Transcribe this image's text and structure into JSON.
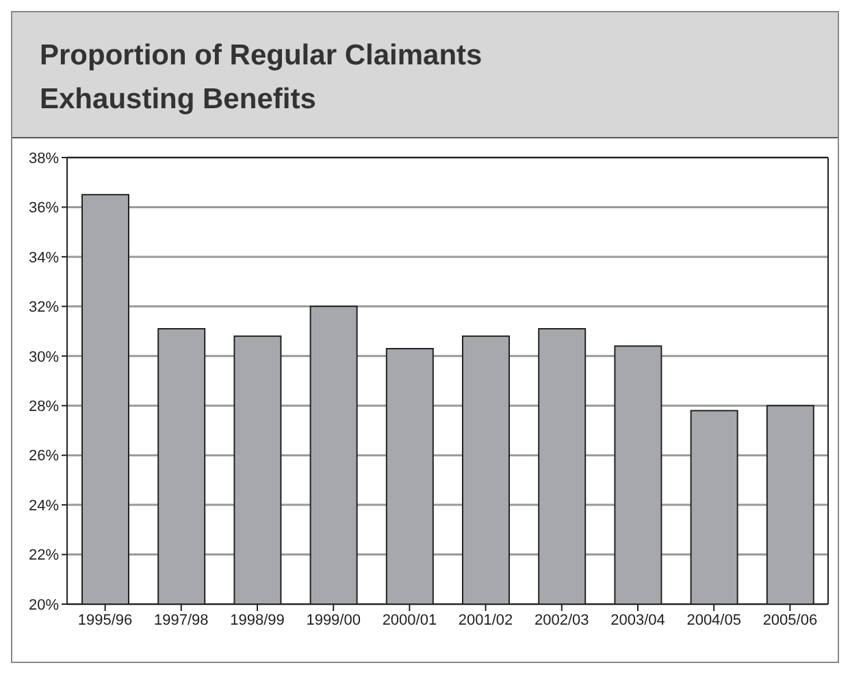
{
  "chart_data": {
    "type": "bar",
    "title": "Proportion of Regular Claimants Exhausting Benefits",
    "categories": [
      "1995/96",
      "1997/98",
      "1998/99",
      "1999/00",
      "2000/01",
      "2001/02",
      "2002/03",
      "2003/04",
      "2004/05",
      "2005/06"
    ],
    "values": [
      36.5,
      31.1,
      30.8,
      32.0,
      30.3,
      30.8,
      31.1,
      30.4,
      27.8,
      28.0
    ],
    "color": "#a7a8ab",
    "ylim": [
      20,
      38
    ],
    "yticks": [
      {
        "value": 20,
        "label": "20%"
      },
      {
        "value": 22,
        "label": "22%"
      },
      {
        "value": 24,
        "label": "24%"
      },
      {
        "value": 26,
        "label": "26%"
      },
      {
        "value": 28,
        "label": "28%"
      },
      {
        "value": 30,
        "label": "30%"
      },
      {
        "value": 32,
        "label": "32%"
      },
      {
        "value": 34,
        "label": "34%"
      },
      {
        "value": 36,
        "label": "36%"
      },
      {
        "value": 38,
        "label": "38%"
      }
    ],
    "grid": "y",
    "legend": false
  }
}
